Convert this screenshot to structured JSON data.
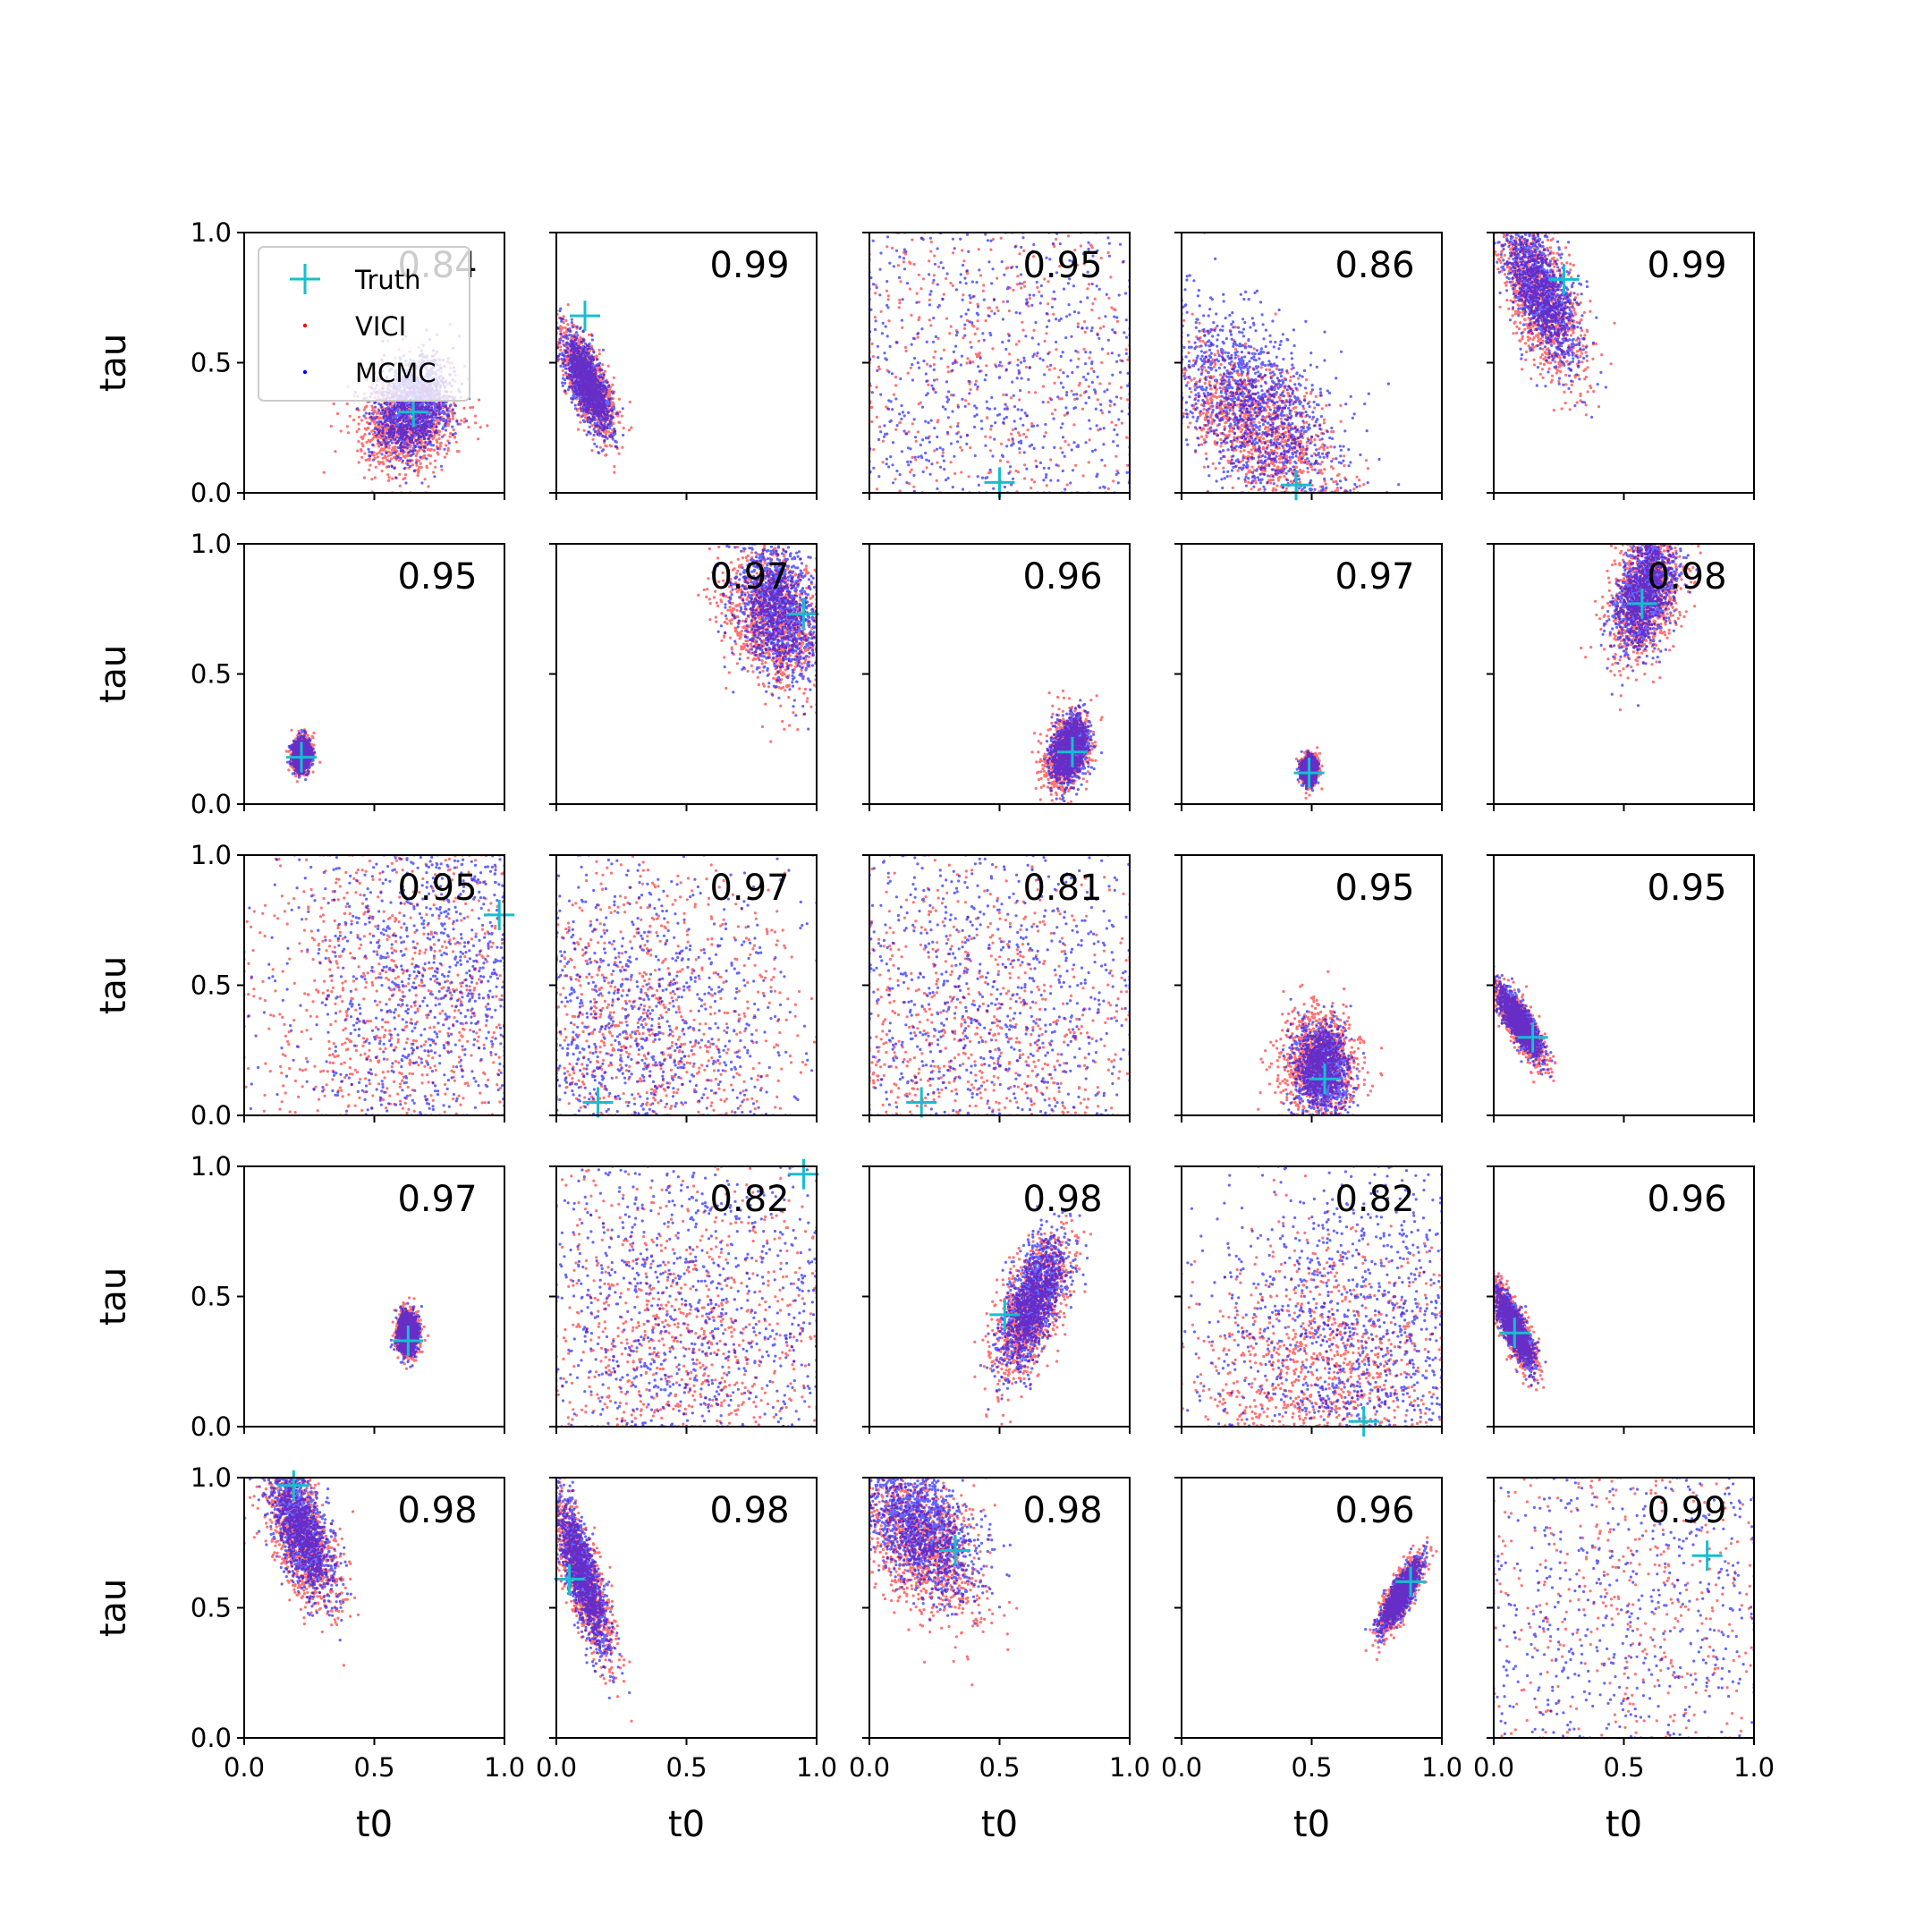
{
  "chart_data": {
    "type": "scatter",
    "grid": false,
    "xlabel": "t0",
    "ylabel": "tau",
    "xlim": [
      0,
      1
    ],
    "ylim": [
      0,
      1
    ],
    "xticks": [
      "0.0",
      "0.5",
      "1.0"
    ],
    "yticks": [
      "0.0",
      "0.5",
      "1.0"
    ],
    "legend": {
      "placement": "upper-left of first panel",
      "entries": [
        {
          "label": "Truth",
          "marker": "plus",
          "color": "#17becf"
        },
        {
          "label": "VICI",
          "marker": "dot",
          "color": "#ff0000"
        },
        {
          "label": "MCMC",
          "marker": "dot",
          "color": "#0000ff"
        }
      ]
    },
    "series_colors": {
      "VICI": "#ff0000",
      "MCMC": "#0000ff",
      "Truth": "#17becf"
    },
    "panels": [
      {
        "row": 0,
        "col": 0,
        "score": "0.84",
        "truth": [
          0.65,
          0.31
        ],
        "vici": {
          "cx": 0.63,
          "cy": 0.28,
          "sx": 0.09,
          "sy": 0.1,
          "rho": 0.2
        },
        "mcmc": {
          "cx": 0.65,
          "cy": 0.33,
          "sx": 0.07,
          "sy": 0.09,
          "rho": 0.2
        }
      },
      {
        "row": 0,
        "col": 1,
        "score": "0.99",
        "truth": [
          0.11,
          0.68
        ],
        "vici": {
          "cx": 0.12,
          "cy": 0.43,
          "sx": 0.05,
          "sy": 0.1,
          "rho": -0.7
        },
        "mcmc": {
          "cx": 0.12,
          "cy": 0.42,
          "sx": 0.045,
          "sy": 0.09,
          "rho": -0.7
        }
      },
      {
        "row": 0,
        "col": 2,
        "score": "0.95",
        "truth": [
          0.5,
          0.04
        ],
        "vici": {
          "cx": 0.5,
          "cy": 0.5,
          "sx": 0.6,
          "sy": 0.6,
          "rho": 0
        },
        "mcmc": {
          "cx": 0.52,
          "cy": 0.4,
          "sx": 0.55,
          "sy": 0.5,
          "rho": 0
        }
      },
      {
        "row": 0,
        "col": 3,
        "score": "0.86",
        "truth": [
          0.44,
          0.03
        ],
        "vici": {
          "cx": 0.3,
          "cy": 0.25,
          "sx": 0.15,
          "sy": 0.16,
          "rho": -0.6
        },
        "mcmc": {
          "cx": 0.3,
          "cy": 0.32,
          "sx": 0.17,
          "sy": 0.2,
          "rho": -0.5
        }
      },
      {
        "row": 0,
        "col": 4,
        "score": "0.99",
        "truth": [
          0.27,
          0.82
        ],
        "vici": {
          "cx": 0.18,
          "cy": 0.75,
          "sx": 0.08,
          "sy": 0.16,
          "rho": -0.6
        },
        "mcmc": {
          "cx": 0.18,
          "cy": 0.78,
          "sx": 0.07,
          "sy": 0.14,
          "rho": -0.6
        }
      },
      {
        "row": 1,
        "col": 0,
        "score": "0.95",
        "truth": [
          0.22,
          0.18
        ],
        "vici": {
          "cx": 0.22,
          "cy": 0.19,
          "sx": 0.018,
          "sy": 0.03,
          "rho": 0
        },
        "mcmc": {
          "cx": 0.22,
          "cy": 0.19,
          "sx": 0.016,
          "sy": 0.028,
          "rho": 0
        }
      },
      {
        "row": 1,
        "col": 1,
        "score": "0.97",
        "truth": [
          0.95,
          0.73
        ],
        "vici": {
          "cx": 0.83,
          "cy": 0.72,
          "sx": 0.1,
          "sy": 0.14,
          "rho": -0.3
        },
        "mcmc": {
          "cx": 0.85,
          "cy": 0.75,
          "sx": 0.08,
          "sy": 0.13,
          "rho": -0.3
        }
      },
      {
        "row": 1,
        "col": 2,
        "score": "0.96",
        "truth": [
          0.78,
          0.2
        ],
        "vici": {
          "cx": 0.76,
          "cy": 0.2,
          "sx": 0.04,
          "sy": 0.07,
          "rho": 0.3
        },
        "mcmc": {
          "cx": 0.77,
          "cy": 0.21,
          "sx": 0.035,
          "sy": 0.06,
          "rho": 0.3
        }
      },
      {
        "row": 1,
        "col": 3,
        "score": "0.97",
        "truth": [
          0.49,
          0.12
        ],
        "vici": {
          "cx": 0.49,
          "cy": 0.13,
          "sx": 0.015,
          "sy": 0.025,
          "rho": 0
        },
        "mcmc": {
          "cx": 0.49,
          "cy": 0.13,
          "sx": 0.013,
          "sy": 0.022,
          "rho": 0
        }
      },
      {
        "row": 1,
        "col": 4,
        "score": "0.98",
        "truth": [
          0.57,
          0.77
        ],
        "vici": {
          "cx": 0.58,
          "cy": 0.8,
          "sx": 0.07,
          "sy": 0.12,
          "rho": 0.4
        },
        "mcmc": {
          "cx": 0.58,
          "cy": 0.82,
          "sx": 0.06,
          "sy": 0.11,
          "rho": 0.4
        }
      },
      {
        "row": 2,
        "col": 0,
        "score": "0.95",
        "truth": [
          0.98,
          0.77
        ],
        "vici": {
          "cx": 0.6,
          "cy": 0.4,
          "sx": 0.35,
          "sy": 0.4,
          "rho": 0
        },
        "mcmc": {
          "cx": 0.8,
          "cy": 0.55,
          "sx": 0.3,
          "sy": 0.4,
          "rho": 0
        }
      },
      {
        "row": 2,
        "col": 1,
        "score": "0.97",
        "truth": [
          0.16,
          0.05
        ],
        "vici": {
          "cx": 0.3,
          "cy": 0.3,
          "sx": 0.35,
          "sy": 0.35,
          "rho": 0
        },
        "mcmc": {
          "cx": 0.25,
          "cy": 0.3,
          "sx": 0.35,
          "sy": 0.35,
          "rho": 0
        }
      },
      {
        "row": 2,
        "col": 2,
        "score": "0.81",
        "truth": [
          0.2,
          0.05
        ],
        "vici": {
          "cx": 0.35,
          "cy": 0.25,
          "sx": 0.4,
          "sy": 0.35,
          "rho": 0
        },
        "mcmc": {
          "cx": 0.45,
          "cy": 0.4,
          "sx": 0.45,
          "sy": 0.45,
          "rho": 0
        }
      },
      {
        "row": 2,
        "col": 3,
        "score": "0.95",
        "truth": [
          0.55,
          0.14
        ],
        "vici": {
          "cx": 0.53,
          "cy": 0.2,
          "sx": 0.07,
          "sy": 0.1,
          "rho": 0
        },
        "mcmc": {
          "cx": 0.54,
          "cy": 0.18,
          "sx": 0.05,
          "sy": 0.08,
          "rho": 0
        }
      },
      {
        "row": 2,
        "col": 4,
        "score": "0.95",
        "truth": [
          0.15,
          0.3
        ],
        "vici": {
          "cx": 0.1,
          "cy": 0.35,
          "sx": 0.045,
          "sy": 0.07,
          "rho": -0.8
        },
        "mcmc": {
          "cx": 0.1,
          "cy": 0.36,
          "sx": 0.04,
          "sy": 0.065,
          "rho": -0.8
        }
      },
      {
        "row": 3,
        "col": 0,
        "score": "0.97",
        "truth": [
          0.63,
          0.33
        ],
        "vici": {
          "cx": 0.63,
          "cy": 0.36,
          "sx": 0.02,
          "sy": 0.04,
          "rho": 0
        },
        "mcmc": {
          "cx": 0.63,
          "cy": 0.36,
          "sx": 0.018,
          "sy": 0.036,
          "rho": 0
        }
      },
      {
        "row": 3,
        "col": 1,
        "score": "0.82",
        "truth": [
          0.95,
          0.97
        ],
        "vici": {
          "cx": 0.45,
          "cy": 0.3,
          "sx": 0.35,
          "sy": 0.35,
          "rho": 0
        },
        "mcmc": {
          "cx": 0.5,
          "cy": 0.45,
          "sx": 0.4,
          "sy": 0.45,
          "rho": 0
        }
      },
      {
        "row": 3,
        "col": 2,
        "score": "0.98",
        "truth": [
          0.52,
          0.43
        ],
        "vici": {
          "cx": 0.62,
          "cy": 0.45,
          "sx": 0.07,
          "sy": 0.13,
          "rho": 0.6
        },
        "mcmc": {
          "cx": 0.63,
          "cy": 0.48,
          "sx": 0.06,
          "sy": 0.12,
          "rho": 0.6
        }
      },
      {
        "row": 3,
        "col": 3,
        "score": "0.82",
        "truth": [
          0.7,
          0.02
        ],
        "vici": {
          "cx": 0.55,
          "cy": 0.2,
          "sx": 0.25,
          "sy": 0.25,
          "rho": 0
        },
        "mcmc": {
          "cx": 0.7,
          "cy": 0.35,
          "sx": 0.3,
          "sy": 0.35,
          "rho": 0
        }
      },
      {
        "row": 3,
        "col": 4,
        "score": "0.96",
        "truth": [
          0.08,
          0.36
        ],
        "vici": {
          "cx": 0.08,
          "cy": 0.38,
          "sx": 0.04,
          "sy": 0.08,
          "rho": -0.8
        },
        "mcmc": {
          "cx": 0.08,
          "cy": 0.38,
          "sx": 0.035,
          "sy": 0.07,
          "rho": -0.8
        }
      },
      {
        "row": 4,
        "col": 0,
        "score": "0.98",
        "truth": [
          0.19,
          0.97
        ],
        "vici": {
          "cx": 0.22,
          "cy": 0.78,
          "sx": 0.07,
          "sy": 0.14,
          "rho": -0.6
        },
        "mcmc": {
          "cx": 0.22,
          "cy": 0.8,
          "sx": 0.06,
          "sy": 0.12,
          "rho": -0.6
        }
      },
      {
        "row": 4,
        "col": 1,
        "score": "0.98",
        "truth": [
          0.05,
          0.61
        ],
        "vici": {
          "cx": 0.1,
          "cy": 0.62,
          "sx": 0.06,
          "sy": 0.16,
          "rho": -0.8
        },
        "mcmc": {
          "cx": 0.1,
          "cy": 0.63,
          "sx": 0.05,
          "sy": 0.15,
          "rho": -0.8
        }
      },
      {
        "row": 4,
        "col": 2,
        "score": "0.98",
        "truth": [
          0.33,
          0.72
        ],
        "vici": {
          "cx": 0.2,
          "cy": 0.75,
          "sx": 0.12,
          "sy": 0.15,
          "rho": -0.5
        },
        "mcmc": {
          "cx": 0.2,
          "cy": 0.8,
          "sx": 0.11,
          "sy": 0.13,
          "rho": -0.5
        }
      },
      {
        "row": 4,
        "col": 3,
        "score": "0.96",
        "truth": [
          0.88,
          0.6
        ],
        "vici": {
          "cx": 0.84,
          "cy": 0.55,
          "sx": 0.04,
          "sy": 0.07,
          "rho": 0.8
        },
        "mcmc": {
          "cx": 0.84,
          "cy": 0.55,
          "sx": 0.035,
          "sy": 0.06,
          "rho": 0.8
        }
      },
      {
        "row": 4,
        "col": 4,
        "score": "0.99",
        "truth": [
          0.82,
          0.7
        ],
        "vici": {
          "cx": 0.5,
          "cy": 0.5,
          "sx": 0.6,
          "sy": 0.6,
          "rho": 0
        },
        "mcmc": {
          "cx": 0.5,
          "cy": 0.5,
          "sx": 0.6,
          "sy": 0.6,
          "rho": 0
        }
      }
    ]
  }
}
